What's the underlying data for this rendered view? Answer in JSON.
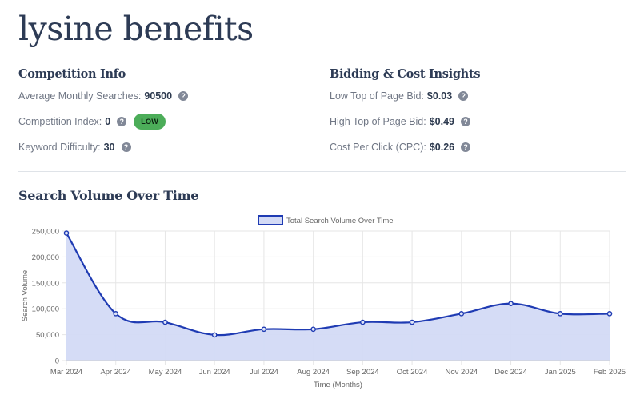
{
  "page": {
    "title": "lysine benefits"
  },
  "competition": {
    "heading": "Competition Info",
    "metrics": [
      {
        "label": "Average Monthly Searches:",
        "value": "90500"
      },
      {
        "label": "Competition Index:",
        "value": "0",
        "badge": "LOW"
      },
      {
        "label": "Keyword Difficulty:",
        "value": "30"
      }
    ]
  },
  "bidding": {
    "heading": "Bidding & Cost Insights",
    "metrics": [
      {
        "label": "Low Top of Page Bid:",
        "value": "$0.03"
      },
      {
        "label": "High Top of Page Bid:",
        "value": "$0.49"
      },
      {
        "label": "Cost Per Click (CPC):",
        "value": "$0.26"
      }
    ]
  },
  "help_icon": {
    "glyph": "?",
    "icon": "help-icon"
  },
  "colors": {
    "badge_low": "#4cad59",
    "line": "#1f3bb3",
    "fill": "#d3daf5"
  },
  "chart_section": {
    "title": "Search Volume Over Time"
  },
  "chart_data": {
    "type": "area",
    "legend": {
      "label": "Total Search Volume Over Time",
      "position": "top"
    },
    "xlabel": "Time (Months)",
    "ylabel": "Search Volume",
    "categories": [
      "Mar 2024",
      "Apr 2024",
      "May 2024",
      "Jun 2024",
      "Jul 2024",
      "Aug 2024",
      "Sep 2024",
      "Oct 2024",
      "Nov 2024",
      "Dec 2024",
      "Jan 2025",
      "Feb 2025"
    ],
    "series": [
      {
        "name": "Total Search Volume Over Time",
        "values": [
          246000,
          90500,
          74000,
          49500,
          60500,
          60500,
          74000,
          74000,
          90500,
          110000,
          90500,
          90500
        ]
      }
    ],
    "ylim": [
      0,
      250000
    ],
    "yticks": [
      0,
      50000,
      100000,
      150000,
      200000,
      250000
    ],
    "ytick_labels": [
      "0",
      "50,000",
      "100,000",
      "150,000",
      "200,000",
      "250,000"
    ],
    "grid": true
  }
}
